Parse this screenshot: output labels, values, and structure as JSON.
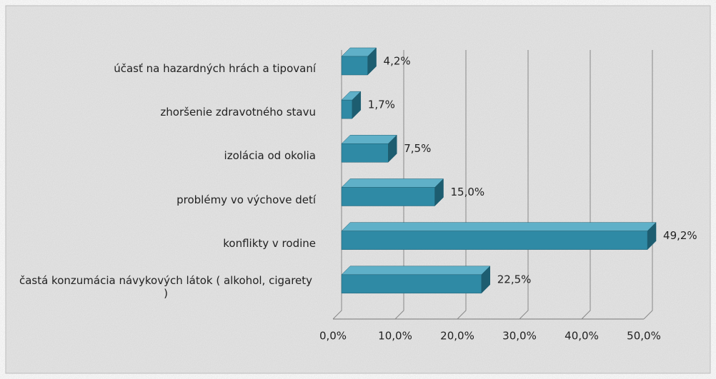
{
  "chart_data": {
    "type": "bar3d_horizontal",
    "categories": [
      "účasť na hazardných hrách a tipovaní",
      "zhoršenie zdravotného stavu",
      "izolácia od okolia",
      "problémy vo výchove detí",
      "konflikty v rodine",
      "častá konzumácia návykových látok ( alkohol, cigarety )"
    ],
    "values": [
      4.2,
      1.7,
      7.5,
      15.0,
      49.2,
      22.5
    ],
    "value_labels": [
      "4,2%",
      "1,7%",
      "7,5%",
      "15,0%",
      "49,2%",
      "22,5%"
    ],
    "color": "#2f8aa5",
    "xlim": [
      0,
      50
    ],
    "xticks": [
      {
        "value": 0,
        "label": "0,0%"
      },
      {
        "value": 10,
        "label": "10,0%"
      },
      {
        "value": 20,
        "label": "20,0%"
      },
      {
        "value": 30,
        "label": "30,0%"
      },
      {
        "value": 40,
        "label": "40,0%"
      },
      {
        "value": 50,
        "label": "50,0%"
      }
    ],
    "grid": true
  }
}
